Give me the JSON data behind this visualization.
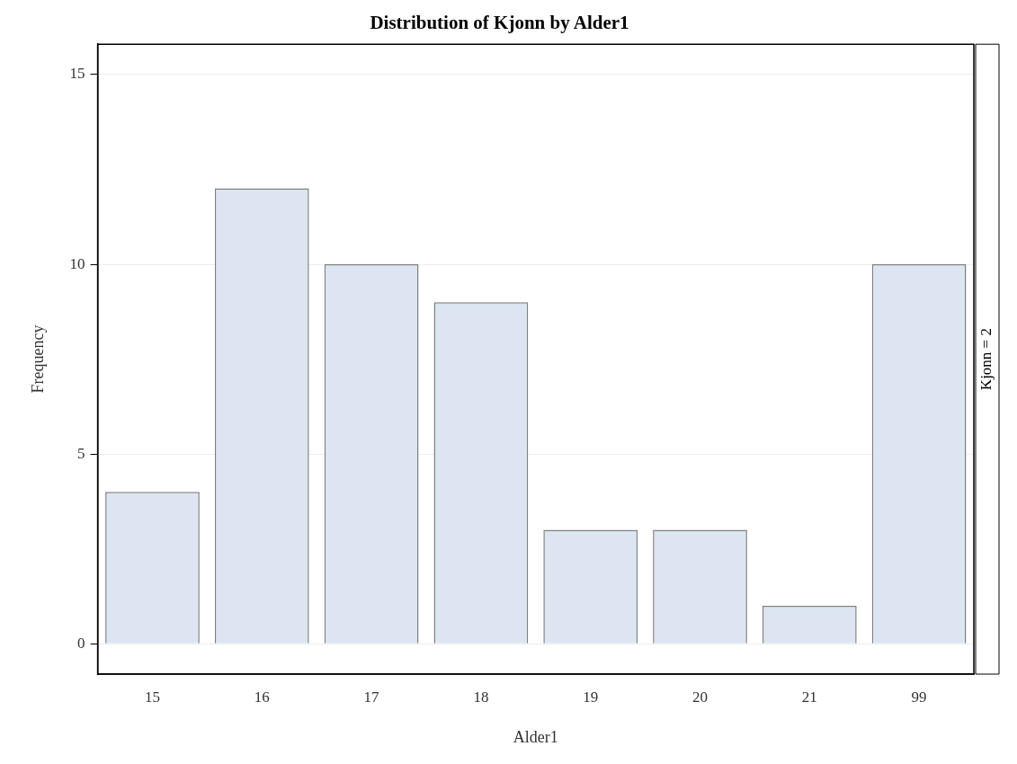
{
  "chart_data": {
    "type": "bar",
    "title": "Distribution of Kjonn by Alder1",
    "xlabel": "Alder1",
    "ylabel": "Frequency",
    "categories": [
      "15",
      "16",
      "17",
      "18",
      "19",
      "20",
      "21",
      "99"
    ],
    "values": [
      4,
      12,
      10,
      9,
      3,
      3,
      1,
      10
    ],
    "color": "#dce5f1",
    "ylim": [
      -0.8,
      15.8
    ],
    "yticks": [
      0,
      5,
      10,
      15
    ],
    "grid": "y",
    "legend": false,
    "annotations": [
      "Kjonn = 2"
    ]
  }
}
